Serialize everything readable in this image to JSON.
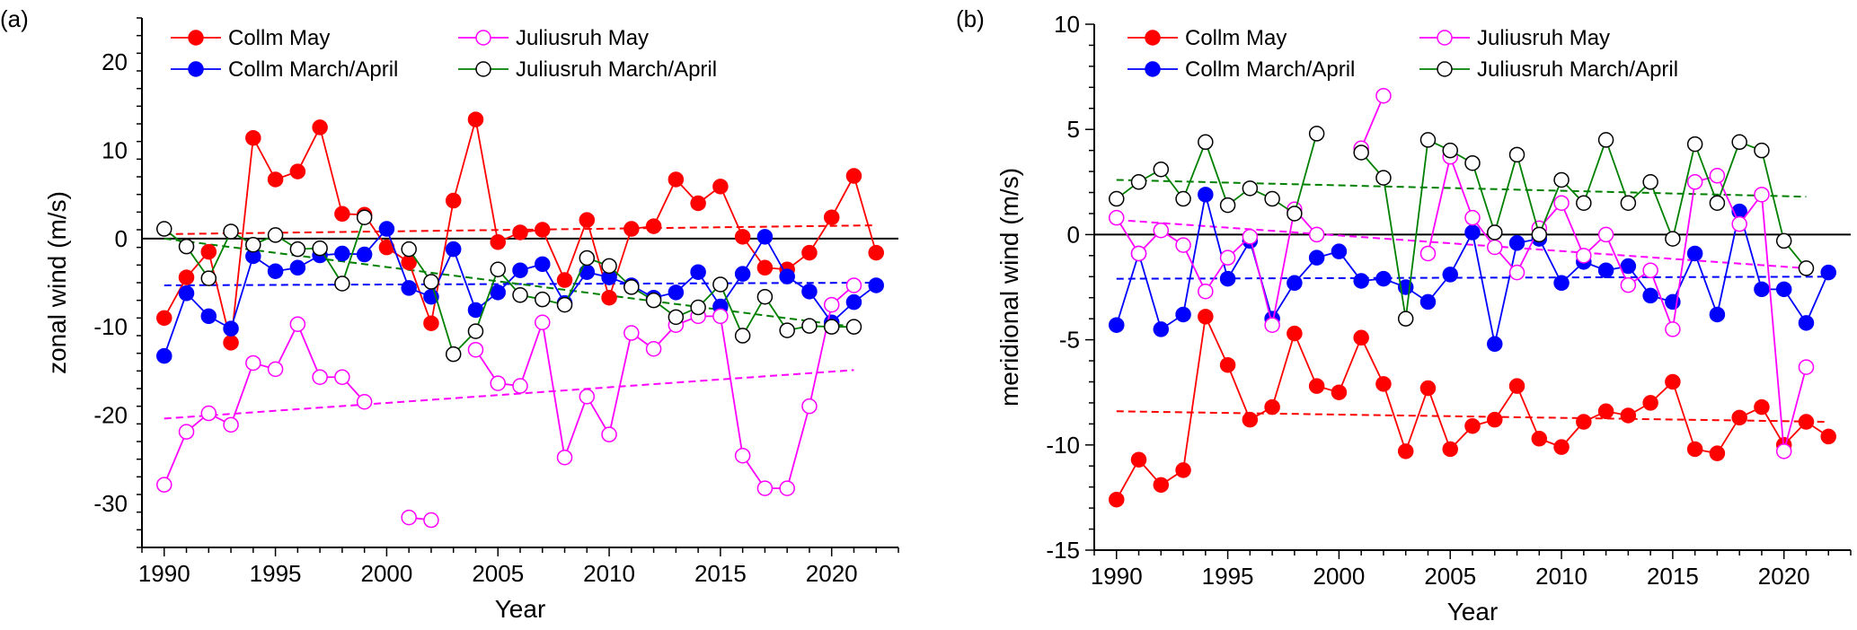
{
  "chart_data": [
    {
      "type": "line",
      "panel_label": "(a)",
      "xlabel": "Year",
      "ylabel": "zonal wind (m/s)",
      "xlim": [
        1989,
        2023
      ],
      "ylim": [
        -35,
        25
      ],
      "xticks": [
        1990,
        1995,
        2000,
        2005,
        2010,
        2015,
        2020
      ],
      "yticks": [
        -30,
        -20,
        -10,
        0,
        10,
        20
      ],
      "legend": [
        "Collm May",
        "Juliusruh May",
        "Collm March/April",
        "Juliusruh March/April"
      ],
      "series": [
        {
          "name": "Collm May",
          "color": "#ff0000",
          "filled": true,
          "x": [
            1990,
            1991,
            1992,
            1993,
            1994,
            1995,
            1996,
            1997,
            1998,
            1999,
            2000,
            2001,
            2002,
            2003,
            2004,
            2005,
            2006,
            2007,
            2008,
            2009,
            2010,
            2011,
            2012,
            2013,
            2014,
            2015,
            2016,
            2017,
            2018,
            2019,
            2020,
            2021,
            2022
          ],
          "y": [
            -9,
            -4.4,
            -1.5,
            -11.8,
            11.4,
            6.7,
            7.6,
            12.6,
            2.8,
            2.7,
            -1,
            -2.7,
            -9.6,
            4.3,
            13.5,
            -0.4,
            0.7,
            1,
            -4.7,
            2.1,
            -6.7,
            1.1,
            1.4,
            6.7,
            4,
            5.9,
            0.2,
            -3.3,
            -3.5,
            -1.6,
            2.4,
            7.1,
            -1.6
          ],
          "trend": [
            0.5,
            1.5
          ]
        },
        {
          "name": "Collm March/April",
          "color": "#0000ff",
          "filled": true,
          "x": [
            1990,
            1991,
            1992,
            1993,
            1994,
            1995,
            1996,
            1997,
            1998,
            1999,
            2000,
            2001,
            2002,
            2003,
            2004,
            2005,
            2006,
            2007,
            2008,
            2009,
            2010,
            2011,
            2012,
            2013,
            2014,
            2015,
            2016,
            2017,
            2018,
            2019,
            2020,
            2021,
            2022
          ],
          "y": [
            -13.3,
            -6.2,
            -8.8,
            -10.2,
            -2,
            -3.7,
            -3.3,
            -1.9,
            -1.7,
            -1.8,
            1.1,
            -5.6,
            -6.6,
            -1.2,
            -8.1,
            -6.1,
            -3.6,
            -2.9,
            -7.3,
            -3.8,
            -4.4,
            -5.3,
            -6.7,
            -6.1,
            -3.8,
            -7.7,
            -4,
            0.2,
            -4.3,
            -6,
            -9.5,
            -7.2,
            -5.3
          ],
          "trend": [
            -5.3,
            -5.0
          ]
        },
        {
          "name": "Juliusruh May",
          "color": "#ff00ff",
          "filled": false,
          "x": [
            1990,
            1991,
            1992,
            1993,
            1994,
            1995,
            1996,
            1997,
            1998,
            1999,
            null,
            2001,
            2002,
            null,
            2004,
            2005,
            2006,
            2007,
            2008,
            2009,
            2010,
            2011,
            2012,
            2013,
            2014,
            2015,
            2016,
            2017,
            2018,
            2019,
            2020,
            2021
          ],
          "y": [
            -27.9,
            -21.9,
            -19.8,
            -21.1,
            -14.1,
            -14.8,
            -9.7,
            -15.7,
            -15.7,
            -18.5,
            null,
            -31.6,
            -31.9,
            null,
            -12.6,
            -16.4,
            -16.7,
            -9.5,
            -24.8,
            -17.9,
            -22.2,
            -10.7,
            -12.5,
            -9.8,
            -8.8,
            -8.8,
            -24.6,
            -28.3,
            -28.3,
            -19,
            -7.5,
            -5.3
          ],
          "trend": [
            -20.4,
            -14.9
          ]
        },
        {
          "name": "Juliusruh March/April",
          "color": "#008000",
          "filled": false,
          "x": [
            1990,
            1991,
            1992,
            1993,
            1994,
            1995,
            1996,
            1997,
            1998,
            1999,
            null,
            2001,
            2002,
            2003,
            2004,
            2005,
            2006,
            2007,
            2008,
            2009,
            2010,
            2011,
            2012,
            2013,
            2014,
            2015,
            2016,
            2017,
            2018,
            2019,
            2020,
            2021
          ],
          "y": [
            1.1,
            -0.9,
            -4.5,
            0.8,
            -0.7,
            0.4,
            -1.2,
            -1.1,
            -5.1,
            2.4,
            null,
            -1.2,
            -4.9,
            -13.1,
            -10.5,
            -3.5,
            -6.4,
            -6.9,
            -7.5,
            -2.2,
            -3.1,
            -5.5,
            -7,
            -8.9,
            -7.8,
            -5.2,
            -11,
            -6.6,
            -10.4,
            -9.9,
            -10,
            -10
          ],
          "trend": [
            0,
            -10
          ]
        }
      ]
    },
    {
      "type": "line",
      "panel_label": "(b)",
      "xlabel": "Year",
      "ylabel": "meridional wind (m/s)",
      "xlim": [
        1989,
        2023
      ],
      "ylim": [
        -15,
        10
      ],
      "xticks": [
        1990,
        1995,
        2000,
        2005,
        2010,
        2015,
        2020
      ],
      "yticks": [
        -15,
        -10,
        -5,
        0,
        5,
        10
      ],
      "legend": [
        "Collm May",
        "Juliusruh May",
        "Collm March/April",
        "Juliusruh March/April"
      ],
      "series": [
        {
          "name": "Collm May",
          "color": "#ff0000",
          "filled": true,
          "x": [
            1990,
            1991,
            1992,
            1993,
            1994,
            1995,
            1996,
            1997,
            1998,
            1999,
            2000,
            2001,
            2002,
            2003,
            2004,
            2005,
            2006,
            2007,
            2008,
            2009,
            2010,
            2011,
            2012,
            2013,
            2014,
            2015,
            2016,
            2017,
            2018,
            2019,
            2020,
            2021,
            2022
          ],
          "y": [
            -12.6,
            -10.7,
            -11.9,
            -11.2,
            -3.9,
            -6.2,
            -8.8,
            -8.2,
            -4.7,
            -7.2,
            -7.5,
            -4.9,
            -7.1,
            -10.3,
            -7.3,
            -10.2,
            -9.1,
            -8.8,
            -7.2,
            -9.7,
            -10.1,
            -8.9,
            -8.4,
            -8.6,
            -8,
            -7,
            -10.2,
            -10.4,
            -8.7,
            -8.2,
            -10,
            -8.9,
            -9.6
          ],
          "trend": [
            -8.4,
            -8.9
          ]
        },
        {
          "name": "Collm March/April",
          "color": "#0000ff",
          "filled": true,
          "x": [
            1990,
            1991,
            1992,
            1993,
            1994,
            1995,
            1996,
            1997,
            1998,
            1999,
            2000,
            2001,
            2002,
            2003,
            2004,
            2005,
            2006,
            2007,
            2008,
            2009,
            2010,
            2011,
            2012,
            2013,
            2014,
            2015,
            2016,
            2017,
            2018,
            2019,
            2020,
            2021,
            2022
          ],
          "y": [
            -4.3,
            -0.9,
            -4.5,
            -3.8,
            1.9,
            -2.1,
            -0.3,
            -4,
            -2.3,
            -1.1,
            -0.8,
            -2.2,
            -2.1,
            -2.5,
            -3.2,
            -1.9,
            0.1,
            -5.2,
            -0.4,
            -0.2,
            -2.3,
            -1.3,
            -1.7,
            -1.5,
            -2.9,
            -3.2,
            -0.9,
            -3.8,
            1.1,
            -2.6,
            -2.6,
            -4.2,
            -1.8
          ],
          "trend": [
            -2.1,
            -2.0
          ]
        },
        {
          "name": "Juliusruh May",
          "color": "#ff00ff",
          "filled": false,
          "x": [
            1990,
            1991,
            1992,
            1993,
            1994,
            1995,
            1996,
            1997,
            1998,
            1999,
            null,
            2001,
            2002,
            null,
            2004,
            2005,
            2006,
            2007,
            2008,
            2009,
            2010,
            2011,
            2012,
            2013,
            2014,
            2015,
            2016,
            2017,
            2018,
            2019,
            2020,
            2021
          ],
          "y": [
            0.8,
            -0.9,
            0.2,
            -0.5,
            -2.7,
            -1.1,
            -0.1,
            -4.3,
            1.2,
            0,
            null,
            4.1,
            6.6,
            null,
            -0.9,
            3.7,
            0.8,
            -0.6,
            -1.8,
            0.3,
            1.5,
            -1,
            0,
            -2.4,
            -1.7,
            -4.5,
            2.5,
            2.8,
            0.5,
            1.9,
            -10.3,
            -6.3
          ],
          "trend": [
            0.7,
            -1.6
          ]
        },
        {
          "name": "Juliusruh March/April",
          "color": "#008000",
          "filled": false,
          "x": [
            1990,
            1991,
            1992,
            1993,
            1994,
            1995,
            1996,
            1997,
            1998,
            1999,
            null,
            2001,
            2002,
            2003,
            2004,
            2005,
            2006,
            2007,
            2008,
            2009,
            2010,
            2011,
            2012,
            2013,
            2014,
            2015,
            2016,
            2017,
            2018,
            2019,
            2020,
            2021
          ],
          "y": [
            1.7,
            2.5,
            3.1,
            1.7,
            4.4,
            1.4,
            2.2,
            1.7,
            1,
            4.8,
            null,
            3.9,
            2.7,
            -4,
            4.5,
            4,
            3.4,
            0.1,
            3.8,
            0,
            2.6,
            1.5,
            4.5,
            1.5,
            2.5,
            -0.2,
            4.3,
            1.5,
            4.4,
            4,
            -0.3,
            -1.6
          ],
          "trend": [
            2.6,
            1.8
          ]
        }
      ]
    }
  ]
}
